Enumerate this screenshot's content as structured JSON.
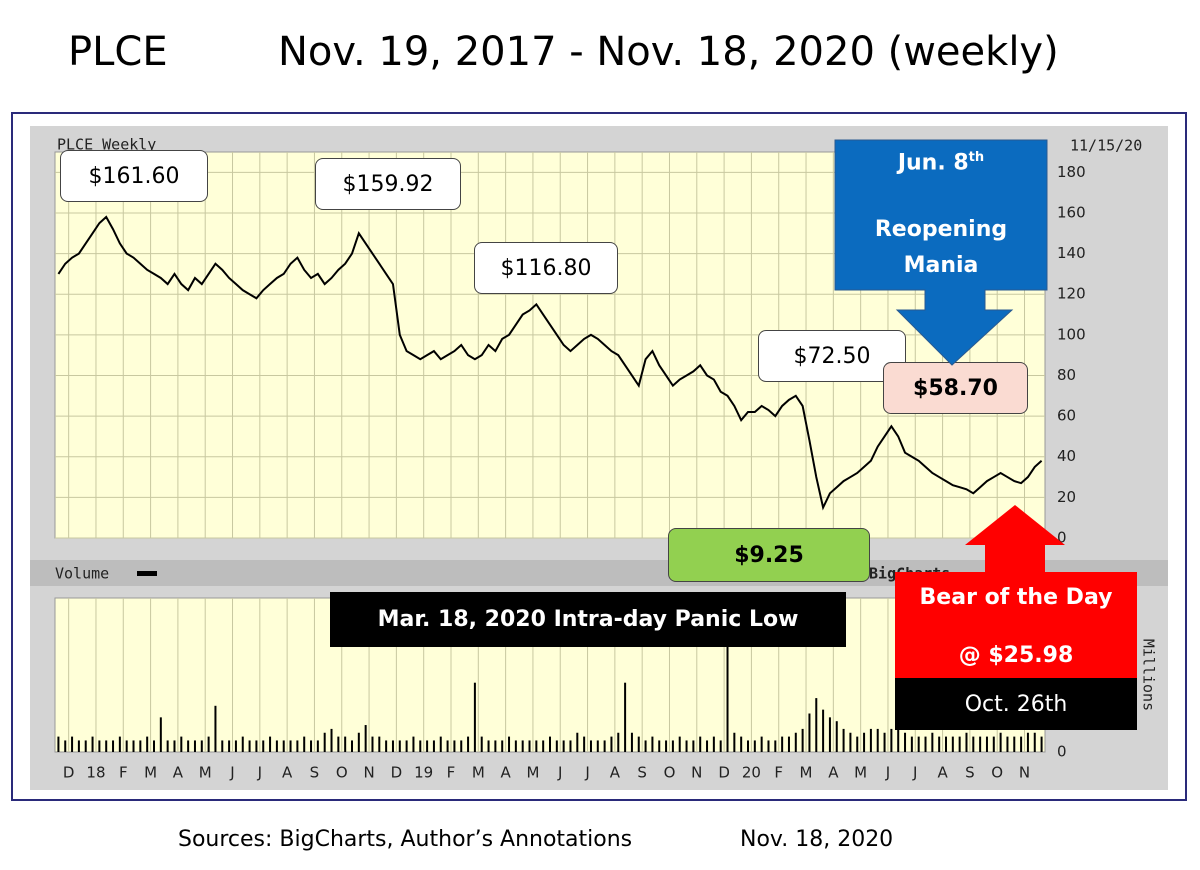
{
  "chart_data": [
    {
      "type": "line",
      "symbol": "PLCE",
      "title": "Nov. 19, 2017 - Nov. 18, 2020 (weekly)",
      "panel_label": "PLCE Weekly",
      "date_label": "11/15/20",
      "x_labels": [
        "D",
        "18",
        "F",
        "M",
        "A",
        "M",
        "J",
        "J",
        "A",
        "S",
        "O",
        "N",
        "D",
        "19",
        "F",
        "M",
        "A",
        "M",
        "J",
        "J",
        "A",
        "S",
        "O",
        "N",
        "D",
        "20",
        "F",
        "M",
        "A",
        "M",
        "J",
        "J",
        "A",
        "S",
        "O",
        "N"
      ],
      "series": [
        {
          "name": "PLCE",
          "color": "#000000",
          "values": [
            130,
            135,
            138,
            140,
            145,
            150,
            155,
            158,
            152,
            145,
            140,
            138,
            135,
            132,
            130,
            128,
            125,
            130,
            125,
            122,
            128,
            125,
            130,
            135,
            132,
            128,
            125,
            122,
            120,
            118,
            122,
            125,
            128,
            130,
            135,
            138,
            132,
            128,
            130,
            125,
            128,
            132,
            135,
            140,
            150,
            145,
            140,
            135,
            130,
            125,
            100,
            92,
            90,
            88,
            90,
            92,
            88,
            90,
            92,
            95,
            90,
            88,
            90,
            95,
            92,
            98,
            100,
            105,
            110,
            112,
            115,
            110,
            105,
            100,
            95,
            92,
            95,
            98,
            100,
            98,
            95,
            92,
            90,
            85,
            80,
            75,
            88,
            92,
            85,
            80,
            75,
            78,
            80,
            82,
            85,
            80,
            78,
            72,
            70,
            65,
            58,
            62,
            62,
            65,
            63,
            60,
            65,
            68,
            70,
            65,
            48,
            30,
            15,
            22,
            25,
            28,
            30,
            32,
            35,
            38,
            45,
            50,
            55,
            50,
            42,
            40,
            38,
            35,
            32,
            30,
            28,
            26,
            25,
            24,
            22,
            25,
            28,
            30,
            32,
            30,
            28,
            27,
            30,
            35,
            38
          ]
        }
      ],
      "ylim": [
        0,
        190
      ],
      "yticks": [
        0,
        20,
        40,
        60,
        80,
        100,
        120,
        140,
        160,
        180
      ],
      "grid": true,
      "annotations": [
        "$161.60",
        "$159.92",
        "$116.80",
        "$72.50",
        "$58.70",
        "$9.25",
        "Mar. 18, 2020 Intra-day Panic Low"
      ],
      "reopening": {
        "date": "Jun. 8",
        "date_suffix": "th",
        "text": "Reopening Mania"
      },
      "bear": {
        "title": "Bear of the Day",
        "price": "@ $25.98",
        "date": "Oct. 26th"
      }
    },
    {
      "type": "bar",
      "title": "Volume",
      "watermark": "©BigCharts",
      "ylabel": "Millions",
      "color": "#000000",
      "values": [
        0.4,
        0.3,
        0.4,
        0.3,
        0.3,
        0.4,
        0.3,
        0.3,
        0.3,
        0.4,
        0.3,
        0.3,
        0.3,
        0.4,
        0.3,
        0.9,
        0.3,
        0.3,
        0.4,
        0.3,
        0.3,
        0.3,
        0.4,
        1.2,
        0.3,
        0.3,
        0.3,
        0.4,
        0.3,
        0.3,
        0.3,
        0.4,
        0.3,
        0.3,
        0.3,
        0.3,
        0.4,
        0.3,
        0.3,
        0.5,
        0.6,
        0.4,
        0.4,
        0.3,
        0.5,
        0.7,
        0.4,
        0.4,
        0.3,
        0.3,
        0.3,
        0.3,
        0.4,
        0.3,
        0.3,
        0.3,
        0.4,
        0.3,
        0.3,
        0.3,
        0.4,
        1.8,
        0.4,
        0.3,
        0.3,
        0.3,
        0.4,
        0.3,
        0.3,
        0.3,
        0.3,
        0.3,
        0.4,
        0.3,
        0.3,
        0.3,
        0.5,
        0.4,
        0.3,
        0.3,
        0.3,
        0.4,
        0.5,
        1.8,
        0.5,
        0.4,
        0.3,
        0.4,
        0.3,
        0.3,
        0.3,
        0.4,
        0.3,
        0.3,
        0.4,
        0.3,
        0.4,
        0.3,
        2.8,
        0.5,
        0.4,
        0.3,
        0.3,
        0.4,
        0.3,
        0.3,
        0.4,
        0.4,
        0.5,
        0.6,
        1.0,
        1.4,
        1.1,
        0.9,
        0.8,
        0.6,
        0.5,
        0.4,
        0.5,
        0.6,
        0.6,
        0.5,
        0.6,
        0.7,
        0.5,
        0.4,
        0.4,
        0.4,
        0.5,
        0.4,
        0.4,
        0.4,
        0.4,
        0.5,
        0.4,
        0.4,
        0.4,
        0.4,
        0.5,
        0.4,
        0.4,
        0.4,
        0.5,
        0.5,
        0.4
      ],
      "ylim": [
        0,
        4
      ],
      "yticks": [
        0
      ]
    }
  ],
  "footer": {
    "source": "Sources: BigCharts, Author’s Annotations",
    "date": "Nov. 18, 2020"
  }
}
